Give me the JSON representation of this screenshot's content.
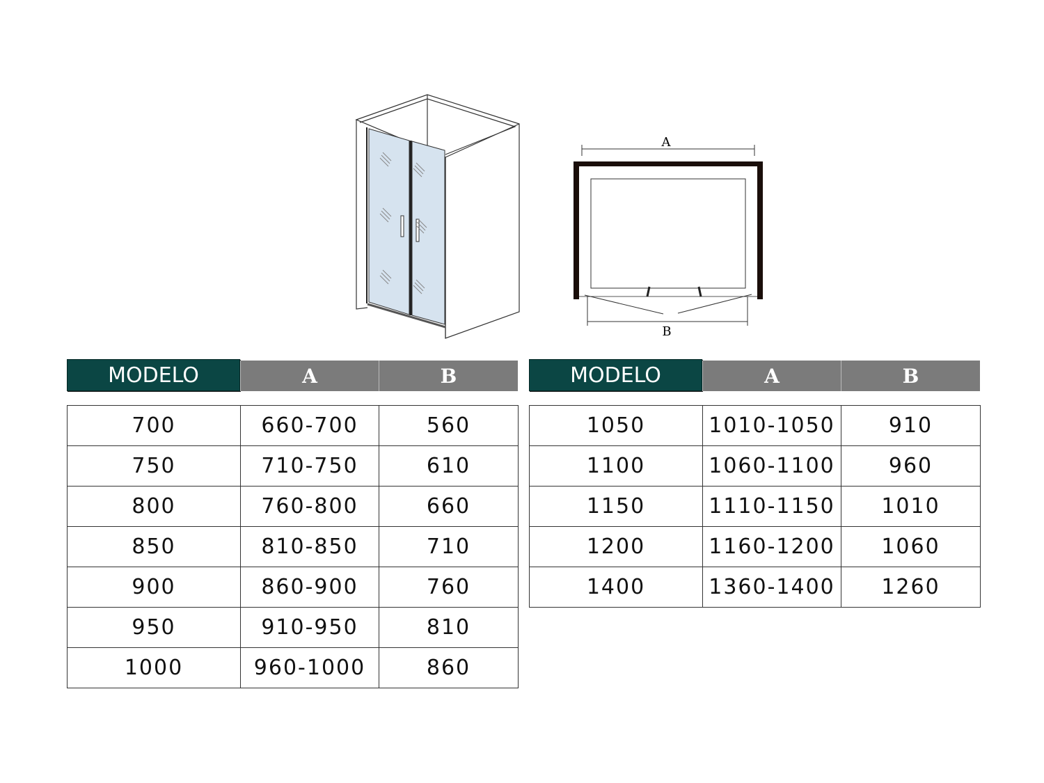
{
  "diagram": {
    "label_a": "A",
    "label_b": "B",
    "glass_color": "#d6e3ef",
    "frame_color": "#1a0e0a"
  },
  "colors": {
    "header_model": "#0b4644",
    "header_dim": "#7b7b7b"
  },
  "tables": [
    {
      "headers": [
        "MODELO",
        "A",
        "B"
      ],
      "rows": [
        [
          "700",
          "660-700",
          "560"
        ],
        [
          "750",
          "710-750",
          "610"
        ],
        [
          "800",
          "760-800",
          "660"
        ],
        [
          "850",
          "810-850",
          "710"
        ],
        [
          "900",
          "860-900",
          "760"
        ],
        [
          "950",
          "910-950",
          "810"
        ],
        [
          "1000",
          "960-1000",
          "860"
        ]
      ]
    },
    {
      "headers": [
        "MODELO",
        "A",
        "B"
      ],
      "rows": [
        [
          "1050",
          "1010-1050",
          "910"
        ],
        [
          "1100",
          "1060-1100",
          "960"
        ],
        [
          "1150",
          "1110-1150",
          "1010"
        ],
        [
          "1200",
          "1160-1200",
          "1060"
        ],
        [
          "1400",
          "1360-1400",
          "1260"
        ]
      ]
    }
  ]
}
